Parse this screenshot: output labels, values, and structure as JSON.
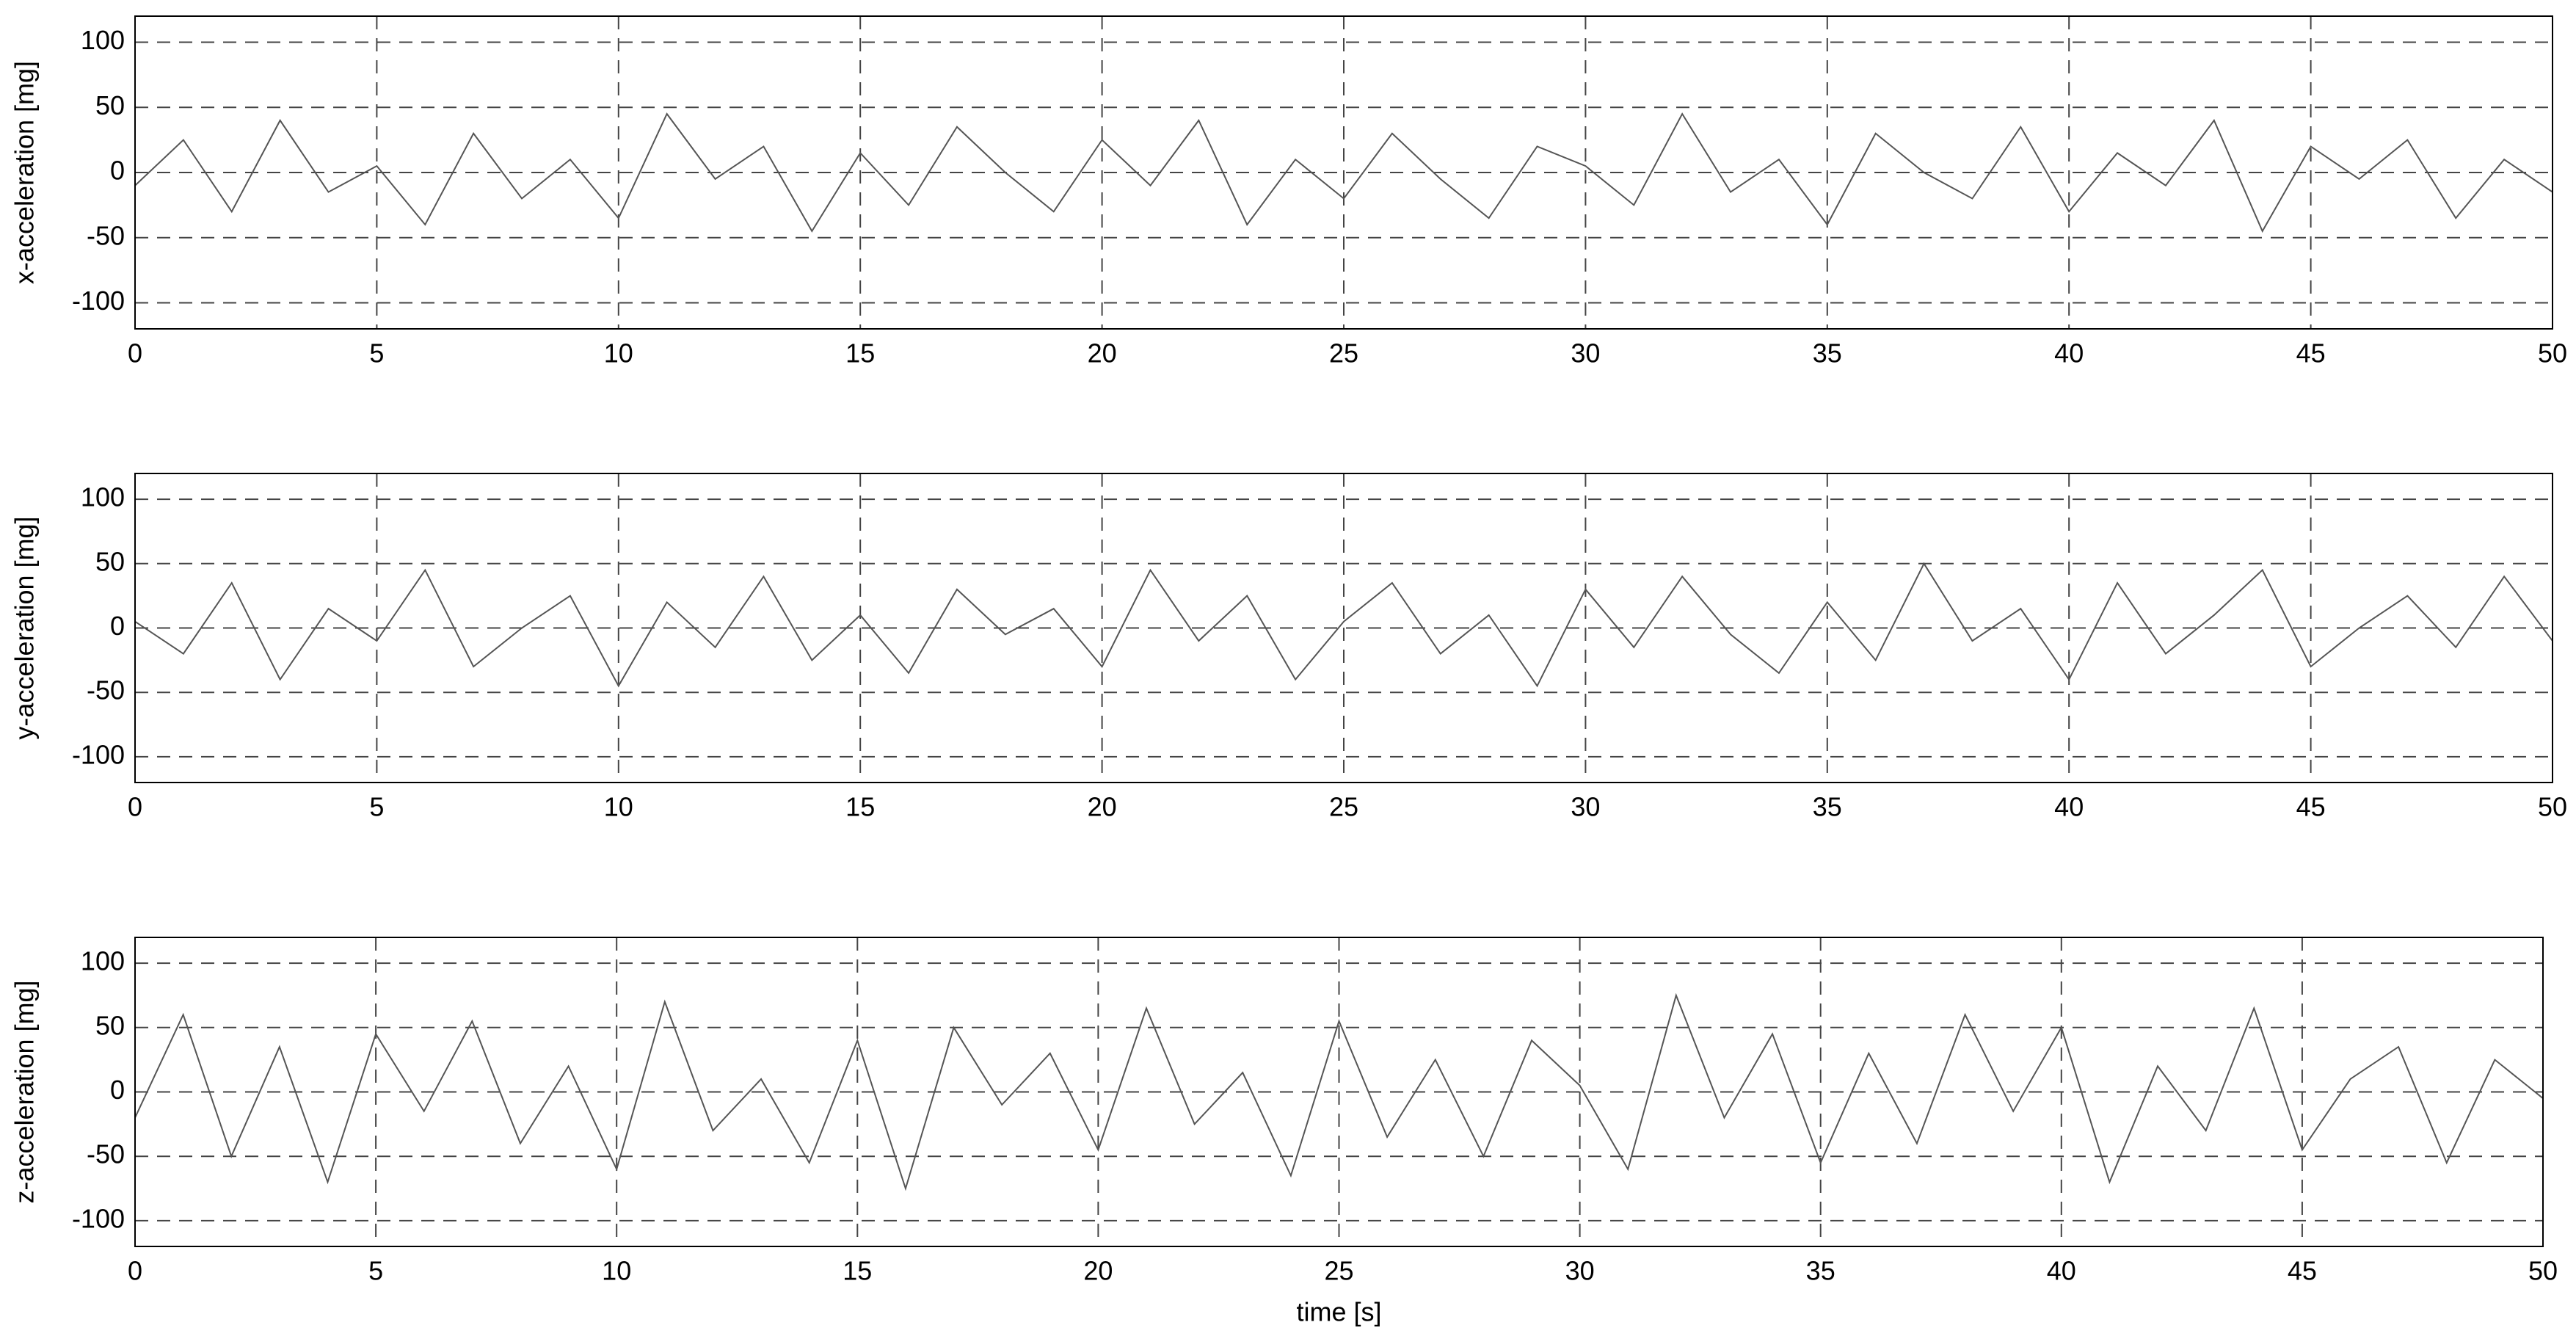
{
  "chart_data": [
    {
      "type": "line",
      "ylabel": "x-acceleration [mg]",
      "x": [
        0,
        1,
        2,
        3,
        4,
        5,
        6,
        7,
        8,
        9,
        10,
        11,
        12,
        13,
        14,
        15,
        16,
        17,
        18,
        19,
        20,
        21,
        22,
        23,
        24,
        25,
        26,
        27,
        28,
        29,
        30,
        31,
        32,
        33,
        34,
        35,
        36,
        37,
        38,
        39,
        40,
        41,
        42,
        43,
        44,
        45,
        46,
        47,
        48,
        49,
        50
      ],
      "series": [
        {
          "color": "#555555",
          "values": [
            -10,
            25,
            -30,
            40,
            -15,
            5,
            -40,
            30,
            -20,
            10,
            -35,
            45,
            -5,
            20,
            -45,
            15,
            -25,
            35,
            0,
            -30,
            25,
            -10,
            40,
            -40,
            10,
            -20,
            30,
            -5,
            -35,
            20,
            5,
            -25,
            45,
            -15,
            10,
            -40,
            30,
            0,
            -20,
            35,
            -30,
            15,
            -10,
            40,
            -45,
            20,
            -5,
            25,
            -35,
            10,
            -15
          ]
        }
      ],
      "xlim": [
        0,
        50
      ],
      "ylim": [
        -120,
        120
      ],
      "xticks": [
        0,
        5,
        10,
        15,
        20,
        25,
        30,
        35,
        40,
        45,
        50
      ],
      "yticks": [
        -100,
        -50,
        0,
        50,
        100
      ],
      "grid": true
    },
    {
      "type": "line",
      "ylabel": "y-acceleration [mg]",
      "x": [
        0,
        1,
        2,
        3,
        4,
        5,
        6,
        7,
        8,
        9,
        10,
        11,
        12,
        13,
        14,
        15,
        16,
        17,
        18,
        19,
        20,
        21,
        22,
        23,
        24,
        25,
        26,
        27,
        28,
        29,
        30,
        31,
        32,
        33,
        34,
        35,
        36,
        37,
        38,
        39,
        40,
        41,
        42,
        43,
        44,
        45,
        46,
        47,
        48,
        49,
        50
      ],
      "series": [
        {
          "color": "#555555",
          "values": [
            5,
            -20,
            35,
            -40,
            15,
            -10,
            45,
            -30,
            0,
            25,
            -45,
            20,
            -15,
            40,
            -25,
            10,
            -35,
            30,
            -5,
            15,
            -30,
            45,
            -10,
            25,
            -40,
            5,
            35,
            -20,
            10,
            -45,
            30,
            -15,
            40,
            -5,
            -35,
            20,
            -25,
            50,
            -10,
            15,
            -40,
            35,
            -20,
            10,
            45,
            -30,
            0,
            25,
            -15,
            40,
            -10
          ]
        }
      ],
      "xlim": [
        0,
        50
      ],
      "ylim": [
        -120,
        120
      ],
      "xticks": [
        0,
        5,
        10,
        15,
        20,
        25,
        30,
        35,
        40,
        45,
        50
      ],
      "yticks": [
        -100,
        -50,
        0,
        50,
        100
      ],
      "grid": true
    },
    {
      "type": "line",
      "ylabel": "z-acceleration [mg]",
      "xlabel": "time [s]",
      "x": [
        0,
        1,
        2,
        3,
        4,
        5,
        6,
        7,
        8,
        9,
        10,
        11,
        12,
        13,
        14,
        15,
        16,
        17,
        18,
        19,
        20,
        21,
        22,
        23,
        24,
        25,
        26,
        27,
        28,
        29,
        30,
        31,
        32,
        33,
        34,
        35,
        36,
        37,
        38,
        39,
        40,
        41,
        42,
        43,
        44,
        45,
        46,
        47,
        48,
        49,
        50
      ],
      "series": [
        {
          "color": "#555555",
          "values": [
            -20,
            60,
            -50,
            35,
            -70,
            45,
            -15,
            55,
            -40,
            20,
            -60,
            70,
            -30,
            10,
            -55,
            40,
            -75,
            50,
            -10,
            30,
            -45,
            65,
            -25,
            15,
            -65,
            55,
            -35,
            25,
            -50,
            40,
            5,
            -60,
            75,
            -20,
            45,
            -55,
            30,
            -40,
            60,
            -15,
            50,
            -70,
            20,
            -30,
            65,
            -45,
            10,
            35,
            -55,
            25,
            -5
          ]
        }
      ],
      "xlim": [
        0,
        50
      ],
      "ylim": [
        -120,
        120
      ],
      "xticks": [
        0,
        5,
        10,
        15,
        20,
        25,
        30,
        35,
        40,
        45,
        50
      ],
      "yticks": [
        -100,
        -50,
        0,
        50,
        100
      ],
      "grid": true
    }
  ]
}
